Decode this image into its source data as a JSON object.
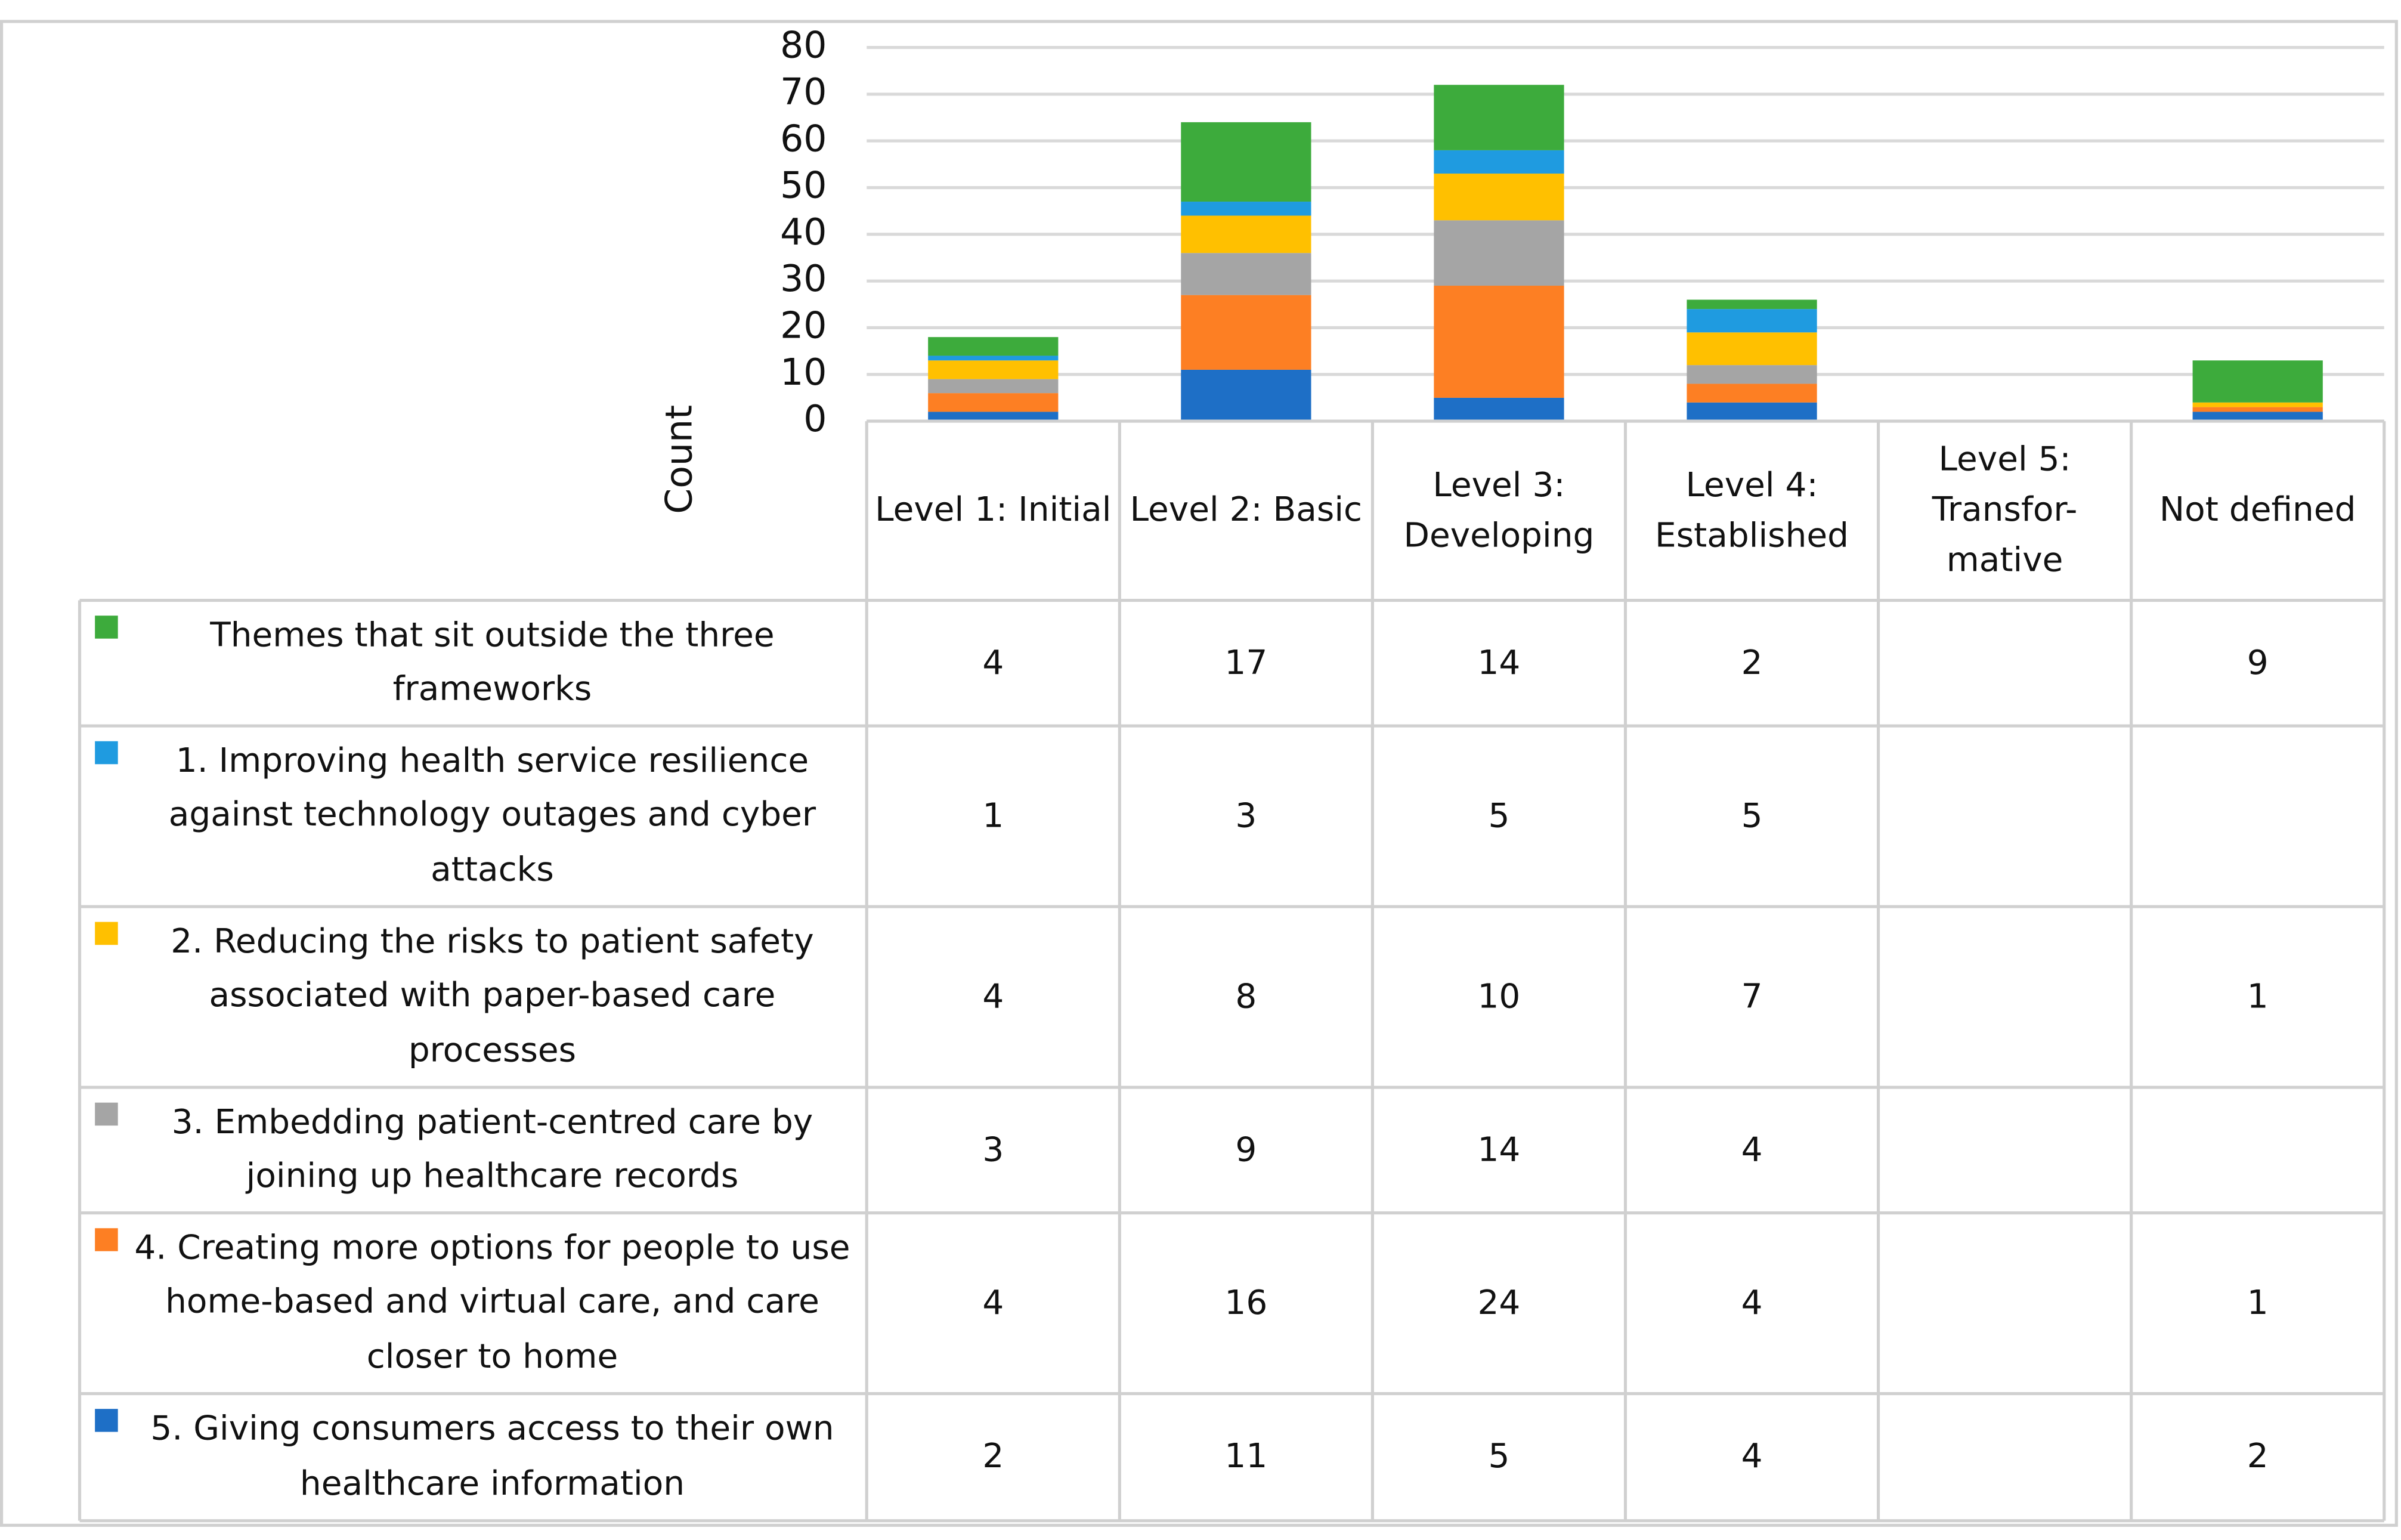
{
  "chart_data": {
    "type": "bar",
    "stacked": true,
    "categories": [
      "Level 1: Initial",
      "Level 2: Basic",
      "Level 3: Developing",
      "Level 4: Established",
      "Level 5: Transfor-mative",
      "Not defined"
    ],
    "y_label": "Count",
    "ylim": [
      0,
      80
    ],
    "yticks": [
      0,
      10,
      20,
      30,
      40,
      50,
      60,
      70,
      80
    ],
    "grid": true,
    "series": [
      {
        "name": "Themes that sit outside the three frameworks",
        "color": "#3dab3c",
        "values": [
          4,
          17,
          14,
          2,
          null,
          9
        ]
      },
      {
        "name": "1. Improving health service resilience against technology outages and cyber attacks",
        "color": "#1f9be0",
        "values": [
          1,
          3,
          5,
          5,
          null,
          null
        ]
      },
      {
        "name": "2. Reducing the risks to patient safety associated with paper-based care processes",
        "color": "#ffc000",
        "values": [
          4,
          8,
          10,
          7,
          null,
          1
        ]
      },
      {
        "name": "3. Embedding patient-centred care by joining up healthcare records",
        "color": "#a5a5a5",
        "values": [
          3,
          9,
          14,
          4,
          null,
          null
        ]
      },
      {
        "name": "4. Creating more options for people to use home-based and virtual care, and care closer to home",
        "color": "#fd7f23",
        "values": [
          4,
          16,
          24,
          4,
          null,
          1
        ]
      },
      {
        "name": "5. Giving consumers access to their own healthcare information",
        "color": "#1e6fc6",
        "values": [
          2,
          11,
          5,
          4,
          null,
          2
        ]
      }
    ]
  }
}
